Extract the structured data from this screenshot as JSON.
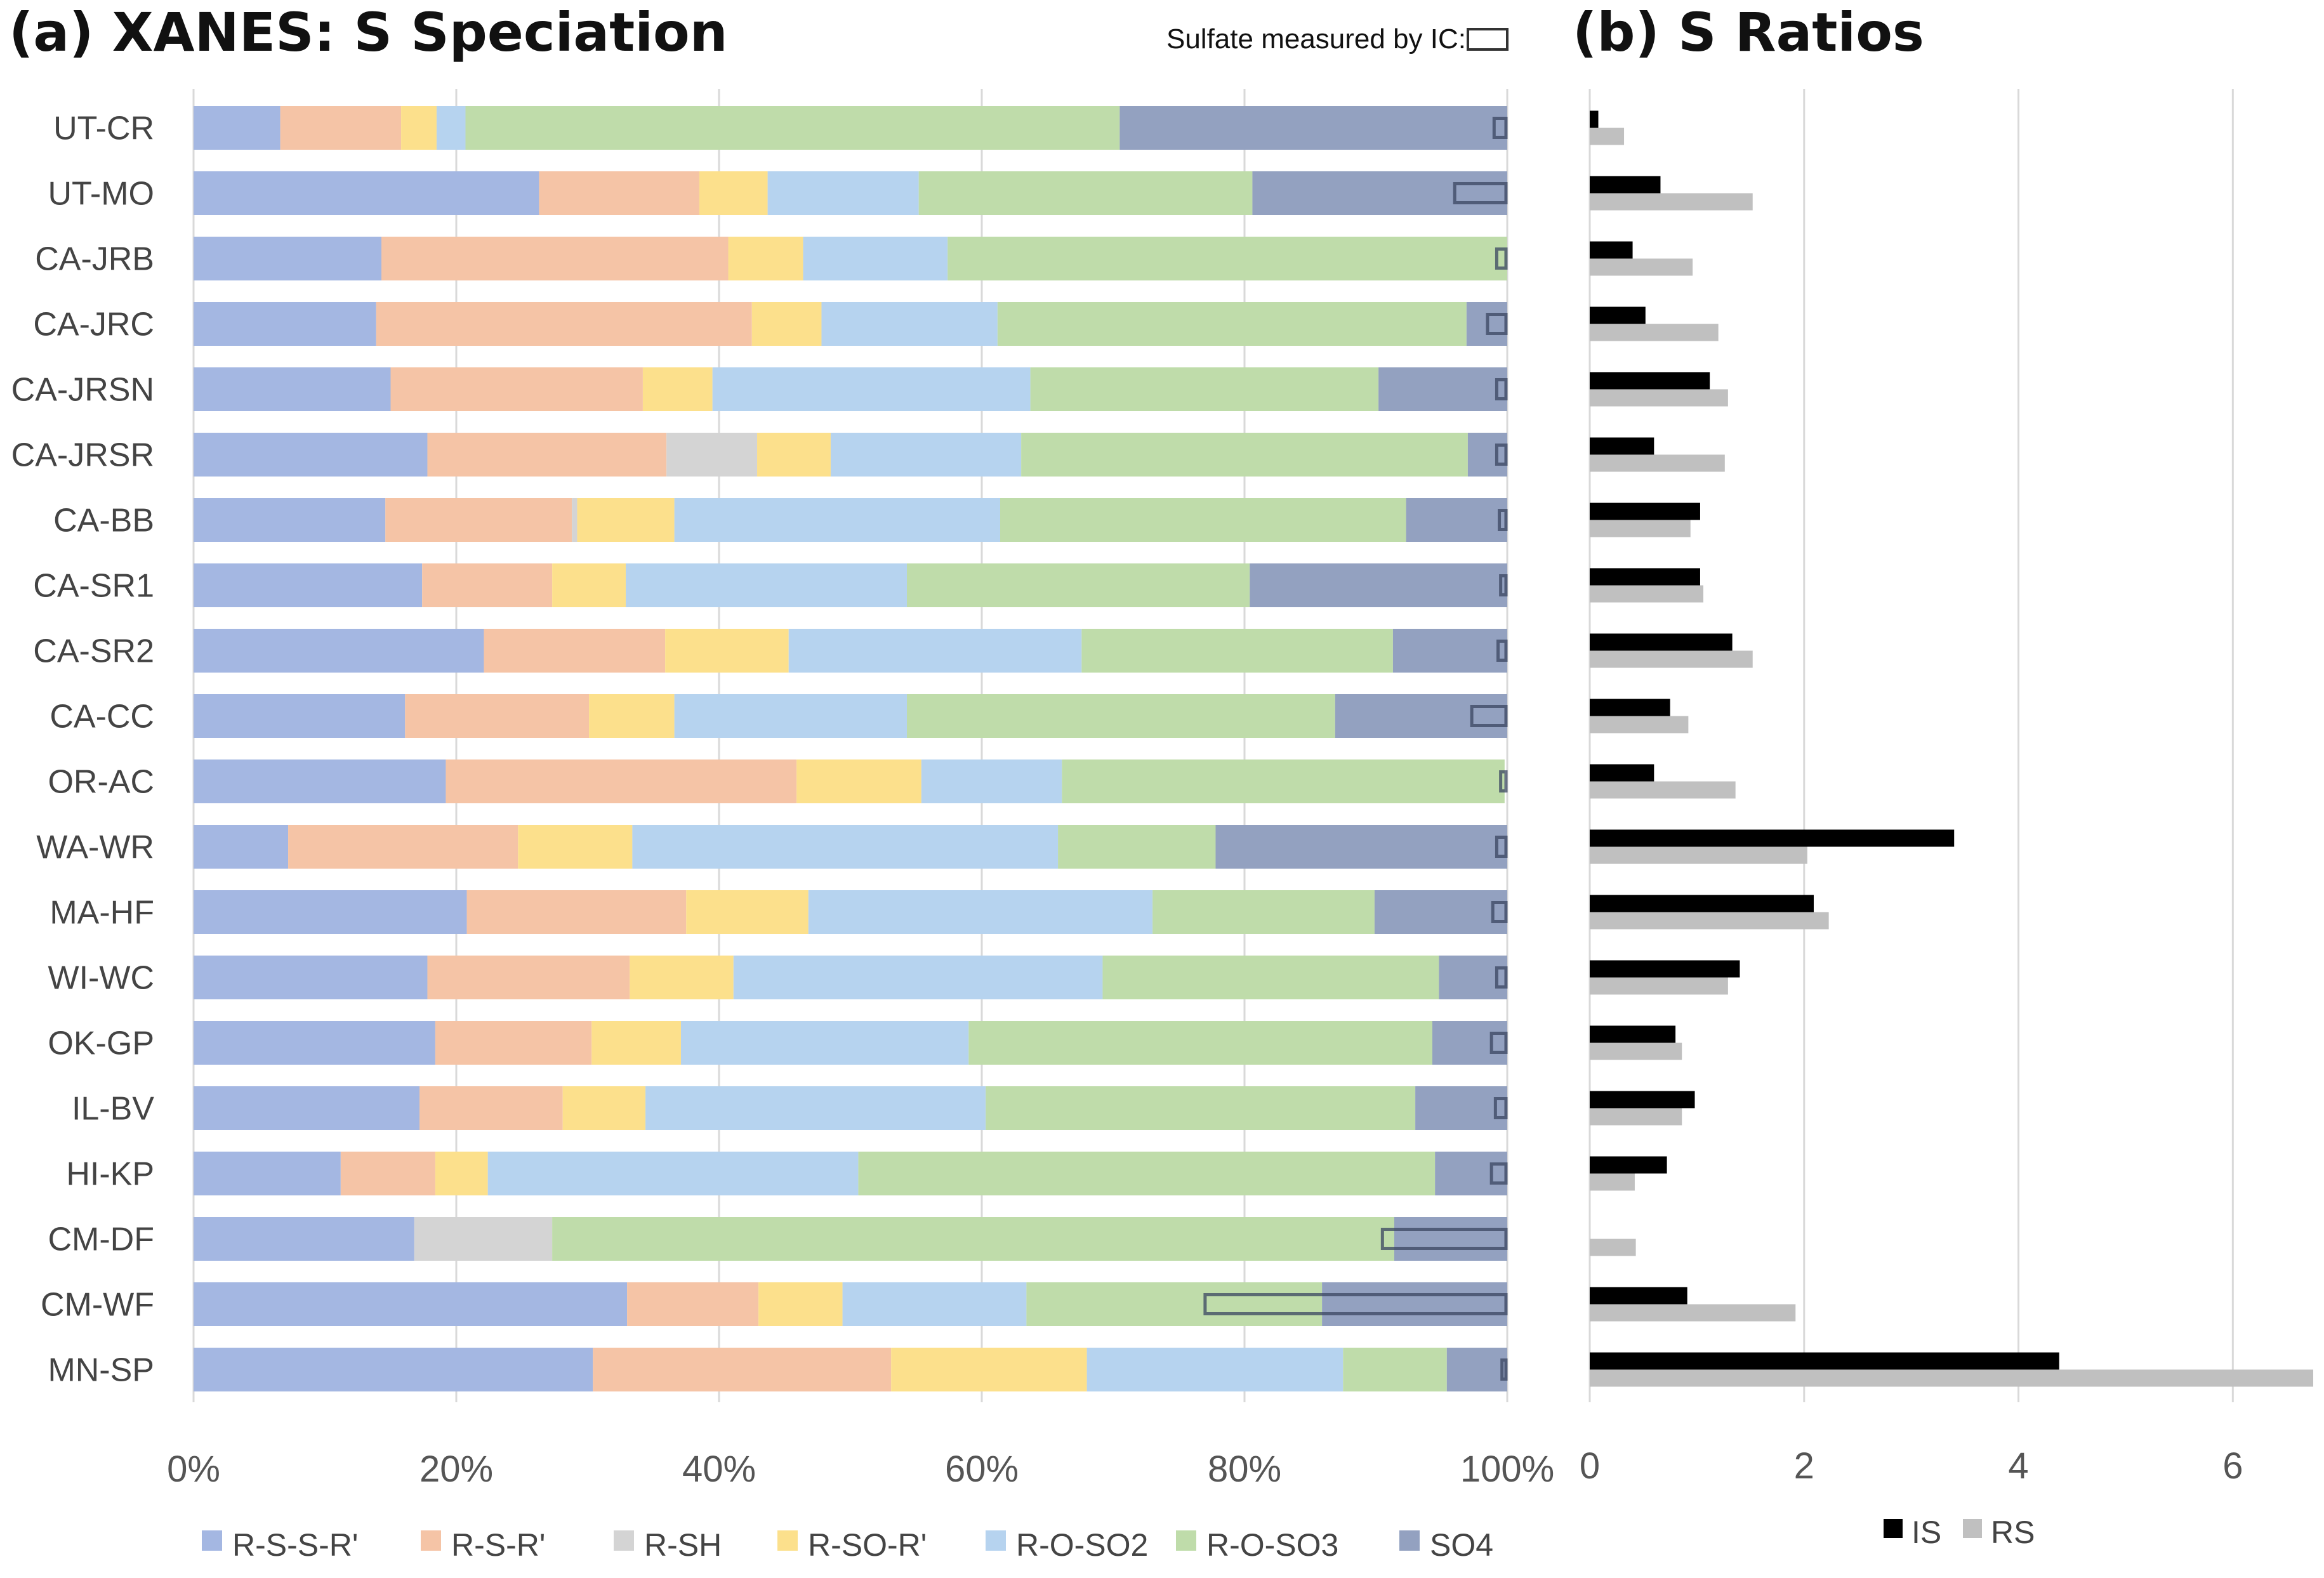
{
  "chart_data": [
    {
      "type": "bar",
      "orientation": "horizontal-stacked",
      "title": "(a) XANES: S Speciation",
      "annotation": "Sulfate measured by IC:",
      "xlim": [
        0,
        100
      ],
      "x_ticks": [
        "0%",
        "20%",
        "40%",
        "60%",
        "80%",
        "100%"
      ],
      "categories": [
        "UT-CR",
        "UT-MO",
        "CA-JRB",
        "CA-JRC",
        "CA-JRSN",
        "CA-JRSR",
        "CA-BB",
        "CA-SR1",
        "CA-SR2",
        "CA-CC",
        "OR-AC",
        "WA-WR",
        "MA-HF",
        "WI-WC",
        "OK-GP",
        "IL-BV",
        "HI-KP",
        "CM-DF",
        "CM-WF",
        "MN-SP"
      ],
      "series": [
        {
          "name": "R-S-S-R'",
          "color": "#a4b7e2",
          "values": [
            6.6,
            26.3,
            14.3,
            13.9,
            15.0,
            17.8,
            14.6,
            17.4,
            22.1,
            16.1,
            19.2,
            7.2,
            20.8,
            17.8,
            18.4,
            17.2,
            11.2,
            16.8,
            33.0,
            30.4
          ]
        },
        {
          "name": "R-S-R'",
          "color": "#f5c4a6",
          "values": [
            9.2,
            12.2,
            26.4,
            28.6,
            19.2,
            18.2,
            14.2,
            9.9,
            13.8,
            14.0,
            26.7,
            17.5,
            16.7,
            15.4,
            11.9,
            10.9,
            7.2,
            0,
            10.0,
            22.7
          ]
        },
        {
          "name": "R-SH",
          "color": "#d4d4d4",
          "values": [
            0,
            0,
            0,
            0,
            0,
            6.9,
            0.4,
            0,
            0,
            0,
            0,
            0,
            0,
            0,
            0,
            0,
            0,
            10.5,
            0,
            0
          ]
        },
        {
          "name": "R-SO-R'",
          "color": "#fce08c",
          "values": [
            2.7,
            5.2,
            5.7,
            5.3,
            5.3,
            5.6,
            7.4,
            5.6,
            9.4,
            6.5,
            9.5,
            8.7,
            9.3,
            7.9,
            6.8,
            6.3,
            4.0,
            0,
            6.4,
            14.9
          ]
        },
        {
          "name": "R-O-SO2",
          "color": "#b6d3ef",
          "values": [
            2.2,
            11.5,
            11.0,
            13.4,
            24.2,
            14.5,
            24.8,
            21.4,
            22.3,
            17.7,
            10.7,
            32.4,
            26.2,
            28.1,
            21.9,
            25.9,
            28.2,
            0,
            14.0,
            19.5
          ]
        },
        {
          "name": "R-O-SO3",
          "color": "#bfdcaa",
          "values": [
            49.8,
            25.4,
            42.6,
            35.7,
            26.5,
            34.0,
            30.9,
            26.1,
            23.7,
            32.6,
            33.7,
            12.0,
            16.9,
            25.6,
            35.3,
            32.7,
            43.9,
            64.1,
            22.5,
            7.9
          ]
        },
        {
          "name": "SO4",
          "color": "#93a1c0",
          "values": [
            29.5,
            19.4,
            0,
            3.1,
            9.8,
            3.0,
            7.7,
            19.6,
            8.7,
            13.1,
            0,
            22.2,
            10.1,
            5.2,
            5.7,
            7.0,
            5.5,
            8.6,
            14.1,
            4.6
          ]
        }
      ],
      "ic_sulfate": [
        1.0,
        4.0,
        0.8,
        1.5,
        0.8,
        0.8,
        0.6,
        0.5,
        0.7,
        2.7,
        0.5,
        0.8,
        1.1,
        0.8,
        1.2,
        0.9,
        1.2,
        9.5,
        23.0,
        0.4
      ],
      "legend": [
        "R-S-S-R'",
        "R-S-R'",
        "R-SH",
        "R-SO-R'",
        "R-O-SO2",
        "R-O-SO3",
        "SO4"
      ]
    },
    {
      "type": "bar",
      "orientation": "horizontal-grouped",
      "title": "(b)   S Ratios",
      "xlim": [
        0,
        6.75
      ],
      "x_ticks": [
        "0",
        "2",
        "4",
        "6"
      ],
      "categories": [
        "UT-CR",
        "UT-MO",
        "CA-JRB",
        "CA-JRC",
        "CA-JRSN",
        "CA-JRSR",
        "CA-BB",
        "CA-SR1",
        "CA-SR2",
        "CA-CC",
        "OR-AC",
        "WA-WR",
        "MA-HF",
        "WI-WC",
        "OK-GP",
        "IL-BV",
        "HI-KP",
        "CM-DF",
        "CM-WF",
        "MN-SP"
      ],
      "series": [
        {
          "name": "IS",
          "color": "#000000",
          "values": [
            0.08,
            0.66,
            0.4,
            0.52,
            1.12,
            0.6,
            1.03,
            1.03,
            1.33,
            0.75,
            0.6,
            3.4,
            2.09,
            1.4,
            0.8,
            0.98,
            0.72,
            0,
            0.91,
            4.38
          ]
        },
        {
          "name": "RS",
          "color": "#c0c0c0",
          "values": [
            0.32,
            1.52,
            0.96,
            1.2,
            1.29,
            1.26,
            0.94,
            1.06,
            1.52,
            0.92,
            1.36,
            2.03,
            2.23,
            1.29,
            0.86,
            0.86,
            0.42,
            0.43,
            1.92,
            6.75
          ]
        }
      ],
      "legend": [
        "IS",
        "RS"
      ]
    }
  ]
}
